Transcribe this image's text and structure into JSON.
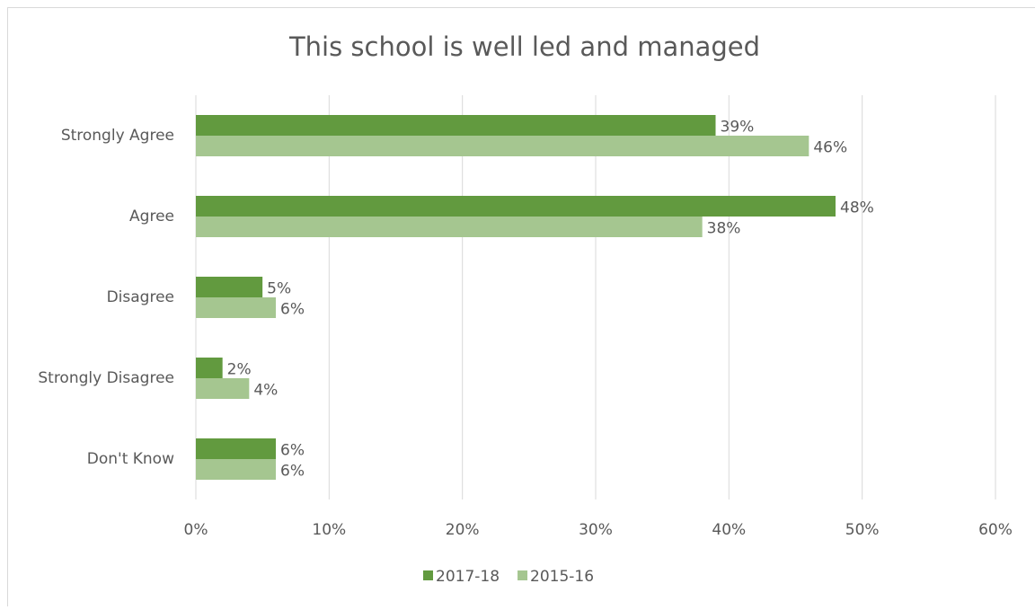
{
  "chart_data": {
    "type": "bar",
    "orientation": "horizontal",
    "title": "This school is well led and managed",
    "categories": [
      "Strongly Agree",
      "Agree",
      "Disagree",
      "Strongly Disagree",
      "Don't Know"
    ],
    "series": [
      {
        "name": "2017-18",
        "color": "#629a3f",
        "values": [
          39,
          48,
          5,
          2,
          6
        ],
        "value_labels": [
          "39%",
          "48%",
          "5%",
          "2%",
          "6%"
        ]
      },
      {
        "name": "2015-16",
        "color": "#a5c690",
        "values": [
          46,
          38,
          6,
          4,
          6
        ],
        "value_labels": [
          "46%",
          "38%",
          "6%",
          "4%",
          "6%"
        ]
      }
    ],
    "xlim": [
      0,
      60
    ],
    "xticks": [
      {
        "value": 0,
        "label": "0%"
      },
      {
        "value": 10,
        "label": "10%"
      },
      {
        "value": 20,
        "label": "20%"
      },
      {
        "value": 30,
        "label": "30%"
      },
      {
        "value": 40,
        "label": "40%"
      },
      {
        "value": 50,
        "label": "50%"
      },
      {
        "value": 60,
        "label": "60%"
      }
    ],
    "grid": true,
    "legend": "bottom"
  }
}
